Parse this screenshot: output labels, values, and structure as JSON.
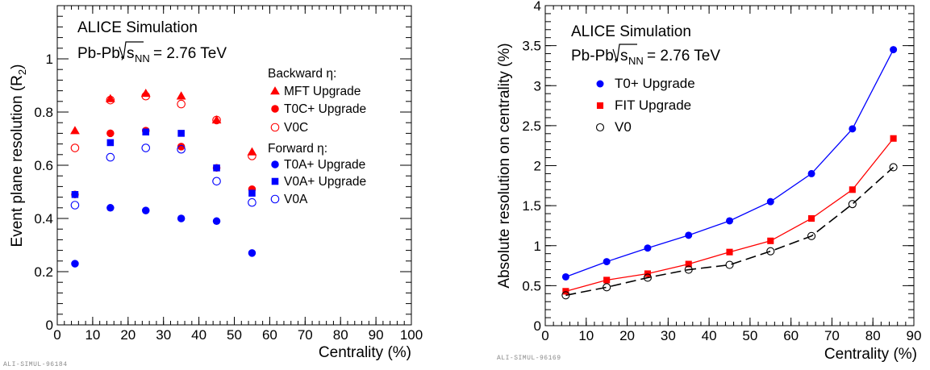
{
  "chart_data": [
    {
      "type": "scatter",
      "title": "ALICE Simulation",
      "subtitle_prefix": "Pb-Pb,",
      "subtitle_sqrt_s": "s",
      "subtitle_sqrt_sub": "NN",
      "subtitle_suffix": " = 2.76 TeV",
      "xlabel": "Centrality (%)",
      "ylabel": "Event plane resolution (R",
      "ylabel_sub": "2",
      "ylabel_close": ")",
      "xlim": [
        0,
        100
      ],
      "ylim": [
        0,
        1.2
      ],
      "xticks": [
        0,
        10,
        20,
        30,
        40,
        50,
        60,
        70,
        80,
        90,
        100
      ],
      "yticks": [
        0,
        0.2,
        0.4,
        0.6,
        0.8,
        1
      ],
      "ytick_labels": [
        "0",
        "0.2",
        "0.4",
        "0.6",
        "0.8",
        "1"
      ],
      "grid": false,
      "legend_position": "right",
      "legend_groups": [
        {
          "heading": "Backward η:",
          "entries": [
            0,
            1,
            2
          ]
        },
        {
          "heading": "Forward η:",
          "entries": [
            3,
            4,
            5
          ]
        }
      ],
      "series": [
        {
          "name": "MFT Upgrade",
          "color": "#ff0000",
          "marker": "triangle",
          "filled": true,
          "x": [
            5,
            15,
            25,
            35,
            45,
            55
          ],
          "y": [
            0.73,
            0.85,
            0.87,
            0.86,
            0.77,
            0.65
          ]
        },
        {
          "name": "T0C+ Upgrade",
          "color": "#ff0000",
          "marker": "circle",
          "filled": true,
          "x": [
            5,
            15,
            25,
            35,
            45,
            55
          ],
          "y": [
            0.49,
            0.72,
            0.73,
            0.67,
            0.59,
            0.51
          ]
        },
        {
          "name": "V0C",
          "color": "#ff0000",
          "marker": "circle",
          "filled": false,
          "x": [
            5,
            15,
            25,
            35,
            45,
            55
          ],
          "y": [
            0.665,
            0.845,
            0.86,
            0.83,
            0.77,
            0.635
          ]
        },
        {
          "name": "T0A+ Upgrade",
          "color": "#0000ff",
          "marker": "circle",
          "filled": true,
          "x": [
            5,
            15,
            25,
            35,
            45,
            55
          ],
          "y": [
            0.23,
            0.44,
            0.43,
            0.4,
            0.39,
            0.27
          ]
        },
        {
          "name": "V0A+ Upgrade",
          "color": "#0000ff",
          "marker": "square",
          "filled": true,
          "x": [
            5,
            15,
            25,
            35,
            45,
            55
          ],
          "y": [
            0.49,
            0.685,
            0.725,
            0.72,
            0.59,
            0.495
          ]
        },
        {
          "name": "V0A",
          "color": "#0000ff",
          "marker": "circle",
          "filled": false,
          "x": [
            5,
            15,
            25,
            35,
            45,
            55
          ],
          "y": [
            0.45,
            0.63,
            0.665,
            0.66,
            0.54,
            0.46
          ]
        }
      ],
      "watermark": "ALI-SIMUL-96184"
    },
    {
      "type": "line",
      "title": "ALICE Simulation",
      "subtitle_prefix": "Pb-Pb,",
      "subtitle_sqrt_s": "s",
      "subtitle_sqrt_sub": "NN",
      "subtitle_suffix": " = 2.76 TeV",
      "xlabel": "Centrality (%)",
      "ylabel": "Absolute resolution on centrality (%)",
      "xlim": [
        0,
        90
      ],
      "ylim": [
        0,
        4
      ],
      "xticks": [
        0,
        10,
        20,
        30,
        40,
        50,
        60,
        70,
        80,
        90
      ],
      "yticks": [
        0,
        0.5,
        1,
        1.5,
        2,
        2.5,
        3,
        3.5,
        4
      ],
      "ytick_labels": [
        "0",
        "0.5",
        "1",
        "1.5",
        "2",
        "2.5",
        "3",
        "3.5",
        "4"
      ],
      "grid": false,
      "legend_position": "top-left",
      "series": [
        {
          "name": "T0+ Upgrade",
          "color": "#0000ff",
          "marker": "circle",
          "filled": true,
          "line": "solid",
          "x": [
            5,
            15,
            25,
            35,
            45,
            55,
            65,
            75,
            85
          ],
          "y": [
            0.61,
            0.8,
            0.97,
            1.13,
            1.31,
            1.55,
            1.9,
            2.46,
            3.45
          ]
        },
        {
          "name": "FIT Upgrade",
          "color": "#ff0000",
          "marker": "square",
          "filled": true,
          "line": "solid",
          "x": [
            5,
            15,
            25,
            35,
            45,
            55,
            65,
            75,
            85
          ],
          "y": [
            0.43,
            0.57,
            0.65,
            0.77,
            0.92,
            1.06,
            1.34,
            1.7,
            2.34
          ]
        },
        {
          "name": "V0",
          "color": "#000000",
          "marker": "circle",
          "filled": false,
          "line": "dashed",
          "x": [
            5,
            15,
            25,
            35,
            45,
            55,
            65,
            75,
            85
          ],
          "y": [
            0.38,
            0.48,
            0.6,
            0.7,
            0.76,
            0.93,
            1.12,
            1.52,
            1.98
          ]
        }
      ],
      "watermark": "ALI-SIMUL-96169"
    }
  ]
}
